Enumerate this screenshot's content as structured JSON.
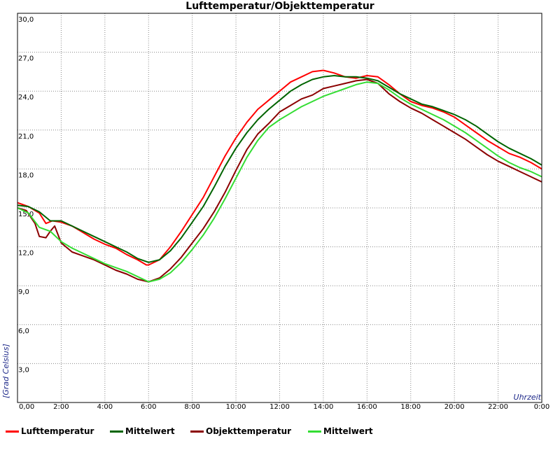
{
  "chart_data": {
    "type": "line",
    "title": "Lufttemperatur/Objekttemperatur",
    "ylabel": "[Grad Celsius]",
    "xlabel": "Uhrzeit",
    "xlim": [
      0,
      24
    ],
    "ylim": [
      0,
      30
    ],
    "grid": true,
    "legend_position": "bottom",
    "y_ticks": [
      "30,0",
      "27,0",
      "24,0",
      "21,0",
      "18,0",
      "15,0",
      "12,0",
      "9,0",
      "6,0",
      "3,0"
    ],
    "x_ticks": [
      "0,00",
      "2:00",
      "4:00",
      "6:00",
      "8:00",
      "10:00",
      "12:00",
      "14:00",
      "16:00",
      "18:00",
      "20:00",
      "22:00",
      "0:00"
    ],
    "series": [
      {
        "name": "Lufttemperatur",
        "color": "#ff0000",
        "x": [
          0,
          0.5,
          1.0,
          1.3,
          1.6,
          2.0,
          2.5,
          3.0,
          3.5,
          4.0,
          4.5,
          5.0,
          5.5,
          5.9,
          6.0,
          6.5,
          7.0,
          7.5,
          8.0,
          8.5,
          9.0,
          9.5,
          10.0,
          10.5,
          11.0,
          11.5,
          12.0,
          12.5,
          13.0,
          13.5,
          14.0,
          14.5,
          15.0,
          15.5,
          16.0,
          16.5,
          17.0,
          17.5,
          18.0,
          18.5,
          19.0,
          19.5,
          20.0,
          20.5,
          21.0,
          21.5,
          22.0,
          22.5,
          23.0,
          23.5,
          24.0
        ],
        "y": [
          15.4,
          15.1,
          14.6,
          13.8,
          14.0,
          13.9,
          13.6,
          13.1,
          12.6,
          12.2,
          11.9,
          11.4,
          11.0,
          10.6,
          10.6,
          11.0,
          12.0,
          13.2,
          14.5,
          15.8,
          17.4,
          19.0,
          20.4,
          21.6,
          22.6,
          23.3,
          24.0,
          24.7,
          25.1,
          25.5,
          25.6,
          25.4,
          25.1,
          25.0,
          25.2,
          25.1,
          24.5,
          23.8,
          23.2,
          22.9,
          22.7,
          22.4,
          22.0,
          21.4,
          20.8,
          20.2,
          19.7,
          19.2,
          18.9,
          18.5,
          18.0
        ]
      },
      {
        "name": "Mittelwert",
        "color": "#006400",
        "x": [
          0,
          0.5,
          1.0,
          1.5,
          2.0,
          2.5,
          3.0,
          3.5,
          4.0,
          4.5,
          5.0,
          5.5,
          6.0,
          6.5,
          7.0,
          7.5,
          8.0,
          8.5,
          9.0,
          9.5,
          10.0,
          10.5,
          11.0,
          11.5,
          12.0,
          12.5,
          13.0,
          13.5,
          14.0,
          14.5,
          15.0,
          15.5,
          16.0,
          16.5,
          17.0,
          17.5,
          18.0,
          18.5,
          19.0,
          19.5,
          20.0,
          20.5,
          21.0,
          21.5,
          22.0,
          22.5,
          23.0,
          23.5,
          24.0
        ],
        "y": [
          15.2,
          15.1,
          14.7,
          14.0,
          14.0,
          13.6,
          13.2,
          12.8,
          12.4,
          12.0,
          11.6,
          11.1,
          10.8,
          11.0,
          11.7,
          12.7,
          13.9,
          15.1,
          16.6,
          18.2,
          19.6,
          20.8,
          21.8,
          22.6,
          23.3,
          24.0,
          24.5,
          24.9,
          25.1,
          25.2,
          25.1,
          25.1,
          25.0,
          24.8,
          24.3,
          23.8,
          23.4,
          23.0,
          22.8,
          22.5,
          22.2,
          21.8,
          21.3,
          20.7,
          20.1,
          19.6,
          19.2,
          18.8,
          18.3
        ]
      },
      {
        "name": "Objekttemperatur",
        "color": "#8b0000",
        "x": [
          0,
          0.4,
          0.8,
          1.0,
          1.3,
          1.5,
          1.7,
          2.0,
          2.5,
          3.0,
          3.5,
          4.0,
          4.5,
          5.0,
          5.5,
          6.0,
          6.5,
          7.0,
          7.5,
          8.0,
          8.5,
          9.0,
          9.5,
          10.0,
          10.5,
          11.0,
          11.5,
          12.0,
          12.5,
          13.0,
          13.5,
          14.0,
          14.5,
          15.0,
          15.5,
          16.0,
          16.5,
          17.0,
          17.5,
          18.0,
          18.5,
          19.0,
          19.5,
          20.0,
          20.5,
          21.0,
          21.5,
          22.0,
          22.5,
          23.0,
          23.5,
          24.0
        ],
        "y": [
          15.0,
          14.8,
          13.8,
          12.8,
          12.7,
          13.2,
          13.6,
          12.3,
          11.6,
          11.3,
          11.0,
          10.6,
          10.2,
          9.9,
          9.5,
          9.3,
          9.6,
          10.3,
          11.2,
          12.3,
          13.4,
          14.7,
          16.2,
          17.9,
          19.5,
          20.7,
          21.5,
          22.4,
          22.9,
          23.4,
          23.7,
          24.2,
          24.4,
          24.6,
          24.8,
          24.9,
          24.6,
          23.8,
          23.2,
          22.7,
          22.3,
          21.8,
          21.3,
          20.8,
          20.3,
          19.7,
          19.1,
          18.6,
          18.2,
          17.8,
          17.4,
          17.0
        ]
      },
      {
        "name": "Mittelwert",
        "color": "#33dd33",
        "x": [
          0,
          0.5,
          1.0,
          1.5,
          2.0,
          2.5,
          3.0,
          3.5,
          4.0,
          4.5,
          5.0,
          5.5,
          6.0,
          6.5,
          7.0,
          7.5,
          8.0,
          8.5,
          9.0,
          9.5,
          10.0,
          10.5,
          11.0,
          11.5,
          12.0,
          12.5,
          13.0,
          13.5,
          14.0,
          14.5,
          15.0,
          15.5,
          16.0,
          16.5,
          17.0,
          17.5,
          18.0,
          18.5,
          19.0,
          19.5,
          20.0,
          20.5,
          21.0,
          21.5,
          22.0,
          22.5,
          23.0,
          23.5,
          24.0
        ],
        "y": [
          15.0,
          14.6,
          13.5,
          13.2,
          12.4,
          11.9,
          11.5,
          11.1,
          10.7,
          10.4,
          10.1,
          9.7,
          9.3,
          9.5,
          10.0,
          10.8,
          11.8,
          12.9,
          14.2,
          15.7,
          17.3,
          18.9,
          20.2,
          21.2,
          21.8,
          22.3,
          22.8,
          23.2,
          23.6,
          23.9,
          24.2,
          24.5,
          24.7,
          24.6,
          24.1,
          23.5,
          23.0,
          22.6,
          22.2,
          21.8,
          21.3,
          20.8,
          20.2,
          19.6,
          19.0,
          18.5,
          18.1,
          17.8,
          17.4
        ]
      }
    ]
  }
}
